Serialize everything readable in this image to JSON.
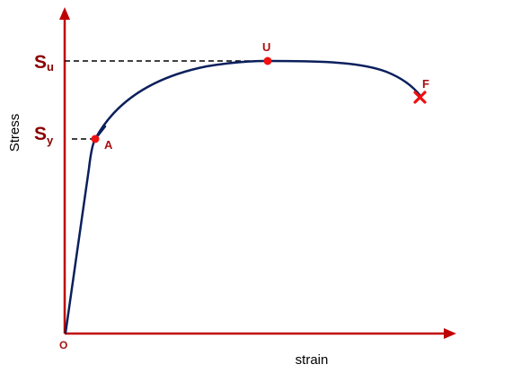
{
  "colors": {
    "axis": "#c00000",
    "curve": "#0a1f5c",
    "point": "#ee1111",
    "point_label": "#aa1111",
    "stress_mark": "#8b0000",
    "guide": "#000000",
    "axis_title": "#000000"
  },
  "axes": {
    "x_title": "strain",
    "y_title": "Stress",
    "origin_label": "O"
  },
  "levels": {
    "ultimate": {
      "symbol": "S",
      "subscript": "u"
    },
    "yield": {
      "symbol": "S",
      "subscript": "y"
    }
  },
  "points": {
    "yield_point": {
      "label": "A"
    },
    "ultimate_point": {
      "label": "U"
    },
    "fracture_point": {
      "label": "F"
    }
  }
}
